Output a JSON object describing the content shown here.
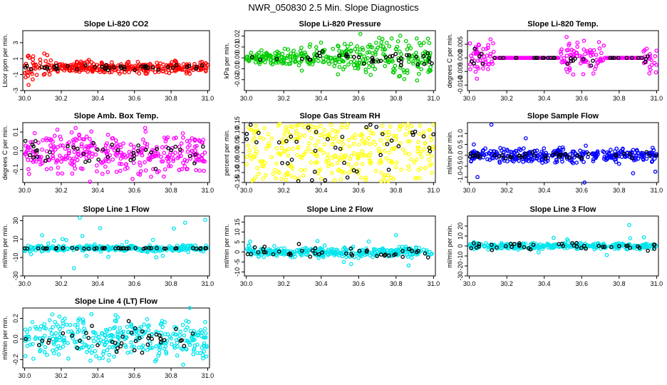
{
  "figure_title": "NWR_050830  2.5 Min. Slope Diagnostics",
  "chart_data": [
    {
      "id": "co2",
      "type": "scatter",
      "title": "Slope Li-820 CO2",
      "ylabel": "Ltcor ppm per min.",
      "ylim": [
        -3,
        4.5
      ],
      "yticks": [
        -3,
        -1,
        1,
        3
      ],
      "xlim": [
        29.99,
        31.01
      ],
      "xticks": [
        "30.0",
        "30.2",
        "30.4",
        "30.6",
        "30.8",
        "31.0"
      ],
      "color": "#ff0000",
      "pattern": "co2"
    },
    {
      "id": "pressure",
      "type": "scatter",
      "title": "Slope Li-820 Pressure",
      "ylabel": "kPa per min.",
      "ylim": [
        -0.03,
        0.025
      ],
      "yticks": [
        -0.02,
        -0.01,
        0.0,
        0.01,
        0.02
      ],
      "ytick_labels": [
        "-0.02",
        "-0.01",
        "0.00",
        "0.01",
        "0.02"
      ],
      "xlim": [
        29.99,
        31.01
      ],
      "xticks": [
        "30.0",
        "30.2",
        "30.4",
        "30.6",
        "30.8",
        "31.0"
      ],
      "color": "#00cc00",
      "pattern": "pressure"
    },
    {
      "id": "temp",
      "type": "scatter",
      "title": "Slope Li-820 Temp.",
      "ylabel": "degrees C per min.",
      "ylim": [
        -0.012,
        0.01
      ],
      "yticks": [
        -0.01,
        -0.005,
        0.0,
        0.005
      ],
      "ytick_labels": [
        "-0.010",
        "-0.005",
        "0.000",
        "0.005"
      ],
      "xlim": [
        29.99,
        31.01
      ],
      "xticks": [
        "30.0",
        "30.2",
        "30.4",
        "30.6",
        "30.8",
        "31.0"
      ],
      "color": "#ff00ff",
      "pattern": "temp"
    },
    {
      "id": "boxtemp",
      "type": "scatter",
      "title": "Slope Amb. Box Temp.",
      "ylabel": "degrees C per min.",
      "ylim": [
        -0.17,
        0.15
      ],
      "yticks": [
        -0.1,
        0.0,
        0.1
      ],
      "ytick_labels": [
        "-0.1",
        "0.0",
        "0.1"
      ],
      "xlim": [
        29.99,
        31.01
      ],
      "xticks": [
        "30.0",
        "30.2",
        "30.4",
        "30.6",
        "30.8",
        "31.0"
      ],
      "color": "#ff00ff",
      "pattern": "dense"
    },
    {
      "id": "rh",
      "type": "scatter",
      "title": "Slope Gas Stream RH",
      "ylabel": "percent per min.",
      "ylim": [
        -0.15,
        0.15
      ],
      "yticks": [
        -0.15,
        -0.1,
        -0.05,
        0.0,
        0.05,
        0.1,
        0.15
      ],
      "ytick_labels": [
        "-0.15",
        "-0.10",
        "-0.05",
        "0.00",
        "0.05",
        "0.10",
        "0.15"
      ],
      "xlim": [
        29.99,
        31.01
      ],
      "xticks": [
        "30.0",
        "30.2",
        "30.4",
        "30.6",
        "30.8",
        "31.0"
      ],
      "color": "#ffff00",
      "pattern": "uniform"
    },
    {
      "id": "sampleflow",
      "type": "scatter",
      "title": "Slope Sample Flow",
      "ylabel": "ml/min per min.",
      "ylim": [
        -1.25,
        1.5
      ],
      "yticks": [
        -1.0,
        -0.5,
        0.0,
        0.5,
        1.0
      ],
      "ytick_labels": [
        "-1.0",
        "-0.5",
        "0.0",
        "0.5",
        "1.0"
      ],
      "xlim": [
        29.99,
        31.01
      ],
      "xticks": [
        "30.0",
        "30.2",
        "30.4",
        "30.6",
        "30.8",
        "31.0"
      ],
      "color": "#0000ff",
      "pattern": "sample"
    },
    {
      "id": "line1",
      "type": "scatter",
      "title": "Slope Line 1 Flow",
      "ylabel": "ml/min per min.",
      "ylim": [
        -30,
        35
      ],
      "yticks": [
        -30,
        -10,
        10,
        30
      ],
      "xlim": [
        29.99,
        31.01
      ],
      "xticks": [
        "30.0",
        "30.2",
        "30.4",
        "30.6",
        "30.8",
        "31.0"
      ],
      "color": "#00e5ee",
      "pattern": "line1"
    },
    {
      "id": "line2",
      "type": "scatter",
      "title": "Slope Line 2 Flow",
      "ylabel": "ml/min per min.",
      "ylim": [
        -12,
        18
      ],
      "yticks": [
        -10,
        -5,
        0,
        5,
        10,
        15
      ],
      "xlim": [
        29.99,
        31.01
      ],
      "xticks": [
        "30.0",
        "30.2",
        "30.4",
        "30.6",
        "30.8",
        "31.0"
      ],
      "color": "#00e5ee",
      "pattern": "line2"
    },
    {
      "id": "line3",
      "type": "scatter",
      "title": "Slope Line 3 Flow",
      "ylabel": "ml/min per min.",
      "ylim": [
        -30,
        30
      ],
      "yticks": [
        -30,
        -20,
        -10,
        0,
        10,
        20
      ],
      "xlim": [
        29.99,
        31.01
      ],
      "xticks": [
        "30.0",
        "30.2",
        "30.4",
        "30.6",
        "30.8",
        "31.0"
      ],
      "color": "#00e5ee",
      "pattern": "line3"
    },
    {
      "id": "line4",
      "type": "scatter",
      "title": "Slope Line 4 (LT) Flow",
      "ylabel": "ml/min per min.",
      "ylim": [
        -0.28,
        0.3
      ],
      "yticks": [
        -0.2,
        0.0,
        0.2
      ],
      "ytick_labels": [
        "-0.2",
        "0.0",
        "0.2"
      ],
      "xlim": [
        29.99,
        31.01
      ],
      "xticks": [
        "30.0",
        "30.2",
        "30.4",
        "30.6",
        "30.8",
        "31.0"
      ],
      "color": "#00e5ee",
      "pattern": "dense"
    }
  ]
}
